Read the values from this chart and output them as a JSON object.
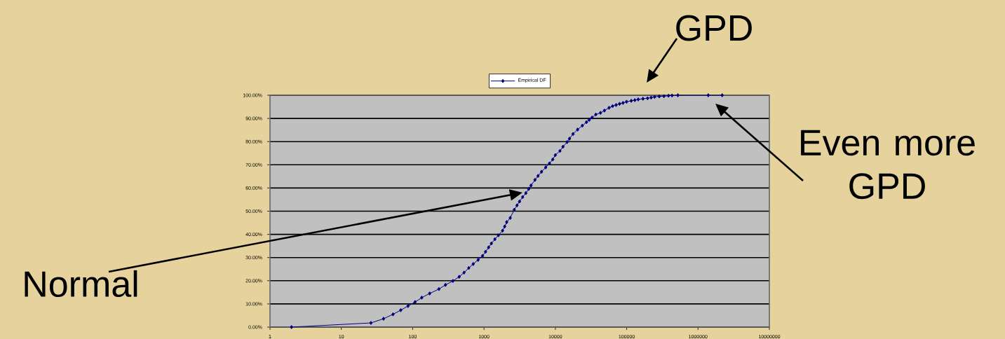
{
  "chart_data": {
    "type": "line",
    "log": "x",
    "grid": "y",
    "legend": "top",
    "marker": "diamond",
    "line_style": "solid",
    "x": [
      2,
      26,
      39,
      53,
      68,
      86,
      108,
      134,
      173,
      233,
      288,
      366,
      449,
      525,
      611,
      705,
      826,
      953,
      1050,
      1160,
      1270,
      1420,
      1590,
      1820,
      1950,
      2080,
      2330,
      2650,
      2900,
      3150,
      3480,
      3860,
      4230,
      4560,
      5180,
      5720,
      6400,
      7330,
      8260,
      9190,
      10000,
      11600,
      12800,
      14600,
      15800,
      17700,
      20500,
      23900,
      27300,
      29900,
      32700,
      36900,
      42900,
      48700,
      56600,
      63400,
      71000,
      79400,
      88900,
      99500,
      116000,
      130000,
      145000,
      169000,
      196000,
      220000,
      246000,
      286000,
      333000,
      386000,
      432000,
      522000,
      1390000,
      2180000
    ],
    "series": [
      {
        "name": "Empirical DF",
        "color": "#000080",
        "values": [
          0,
          1.8,
          3.6,
          5.5,
          7.3,
          9.1,
          10.8,
          12.7,
          14.5,
          16.4,
          18.2,
          19.9,
          21.7,
          23.5,
          25.5,
          27.2,
          29.0,
          30.7,
          32.5,
          34.4,
          36.1,
          37.9,
          39.6,
          41.6,
          43.4,
          45.3,
          47.1,
          50.6,
          52.5,
          54.2,
          56.1,
          57.8,
          59.6,
          61.1,
          63.5,
          65.2,
          67.0,
          68.9,
          70.6,
          72.3,
          74.2,
          76.0,
          77.8,
          79.8,
          81.3,
          83.3,
          85.2,
          86.9,
          88.4,
          89.4,
          90.4,
          91.7,
          92.4,
          93.4,
          94.6,
          95.3,
          95.8,
          96.3,
          96.7,
          97.2,
          97.6,
          97.9,
          98.2,
          98.5,
          98.7,
          99.0,
          99.3,
          99.5,
          99.6,
          99.8,
          99.9,
          100,
          100,
          100
        ]
      }
    ],
    "xlim": [
      1,
      10000000
    ],
    "xticks": [
      1,
      10,
      100,
      1000,
      10000,
      100000,
      1000000,
      10000000
    ],
    "ylim": [
      0,
      100
    ],
    "yticks": [
      {
        "value": 0,
        "label": "0.00%"
      },
      {
        "value": 10,
        "label": "10.00%"
      },
      {
        "value": 20,
        "label": "20.00%"
      },
      {
        "value": 30,
        "label": "30.00%"
      },
      {
        "value": 40,
        "label": "40.00%"
      },
      {
        "value": 50,
        "label": "50.00%"
      },
      {
        "value": 60,
        "label": "60.00%"
      },
      {
        "value": 70,
        "label": "70.00%"
      },
      {
        "value": 80,
        "label": "80.00%"
      },
      {
        "value": 90,
        "label": "90.00%"
      },
      {
        "value": 100,
        "label": "100.00%"
      }
    ],
    "annotations": [
      "GPD",
      "Even more GPD",
      "Normal"
    ]
  }
}
